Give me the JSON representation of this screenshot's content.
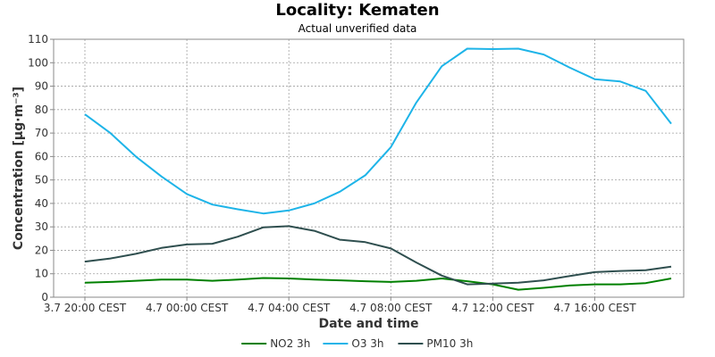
{
  "chart_data": {
    "type": "line",
    "title": "Locality: Kematen",
    "subtitle": "Actual unverified data",
    "xlabel": "Date and time",
    "ylabel": "Concentration [µg·m⁻³]",
    "ylim": [
      0,
      110
    ],
    "yticks": [
      0,
      10,
      20,
      30,
      40,
      50,
      60,
      70,
      80,
      90,
      100,
      110
    ],
    "x": [
      "3.7 20:00",
      "3.7 21:00",
      "3.7 22:00",
      "3.7 23:00",
      "4.7 00:00",
      "4.7 01:00",
      "4.7 02:00",
      "4.7 03:00",
      "4.7 04:00",
      "4.7 05:00",
      "4.7 06:00",
      "4.7 07:00",
      "4.7 08:00",
      "4.7 09:00",
      "4.7 10:00",
      "4.7 11:00",
      "4.7 12:00",
      "4.7 13:00",
      "4.7 14:00",
      "4.7 15:00",
      "4.7 16:00",
      "4.7 17:00",
      "4.7 18:00",
      "4.7 19:00"
    ],
    "x_tick_labels": [
      {
        "label": "3.7 20:00 CEST",
        "index": 0
      },
      {
        "label": "4.7 00:00 CEST",
        "index": 4
      },
      {
        "label": "4.7 04:00 CEST",
        "index": 8
      },
      {
        "label": "4.7 08:00 CEST",
        "index": 12
      },
      {
        "label": "4.7 12:00 CEST",
        "index": 16
      },
      {
        "label": "4.7 16:00 CEST",
        "index": 20
      }
    ],
    "grid": true,
    "legend_position": "bottom-center",
    "series": [
      {
        "name": "NO2 3h",
        "color": "#008000",
        "values": [
          6.2,
          6.5,
          7,
          7.5,
          7.5,
          7,
          7.5,
          8.2,
          8,
          7.5,
          7.2,
          6.8,
          6.5,
          7,
          8,
          6.8,
          5.5,
          3.2,
          4,
          5,
          5.5,
          5.5,
          6,
          8
        ]
      },
      {
        "name": "O3 3h",
        "color": "#1eb4e8",
        "values": [
          78,
          70,
          60,
          51.5,
          44,
          39.5,
          37.5,
          35.7,
          37,
          40,
          45,
          52,
          64,
          83,
          98.5,
          106,
          105.8,
          106,
          103.5,
          98,
          93,
          92,
          88,
          74
        ]
      },
      {
        "name": "PM10 3h",
        "color": "#2f4f4f",
        "values": [
          15.2,
          16.5,
          18.5,
          21,
          22.5,
          22.8,
          25.8,
          29.8,
          30.3,
          28.3,
          24.5,
          23.5,
          20.8,
          14.8,
          9.2,
          5.5,
          5.8,
          6.2,
          7.2,
          9,
          10.7,
          11.2,
          11.5,
          13
        ]
      }
    ]
  }
}
